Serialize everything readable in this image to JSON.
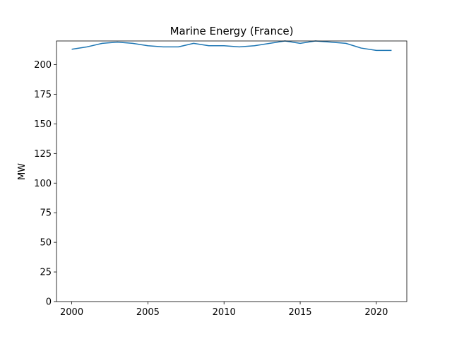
{
  "chart_data": {
    "type": "line",
    "title": "Marine Energy (France)",
    "xlabel": "",
    "ylabel": "MW",
    "xlim": [
      1999,
      2022
    ],
    "ylim": [
      0,
      220
    ],
    "x_ticks": [
      2000,
      2005,
      2010,
      2015,
      2020
    ],
    "y_ticks": [
      0,
      25,
      50,
      75,
      100,
      125,
      150,
      175,
      200
    ],
    "grid": false,
    "series": [
      {
        "color": "#1f77b4",
        "x": [
          2000,
          2001,
          2002,
          2003,
          2004,
          2005,
          2006,
          2007,
          2008,
          2009,
          2010,
          2011,
          2012,
          2013,
          2014,
          2015,
          2016,
          2017,
          2018,
          2019,
          2020,
          2021
        ],
        "y": [
          213,
          215,
          218,
          219,
          218,
          216,
          215,
          215,
          218,
          216,
          216,
          215,
          216,
          218,
          220,
          218,
          220,
          219,
          218,
          214,
          212,
          212
        ]
      }
    ]
  }
}
